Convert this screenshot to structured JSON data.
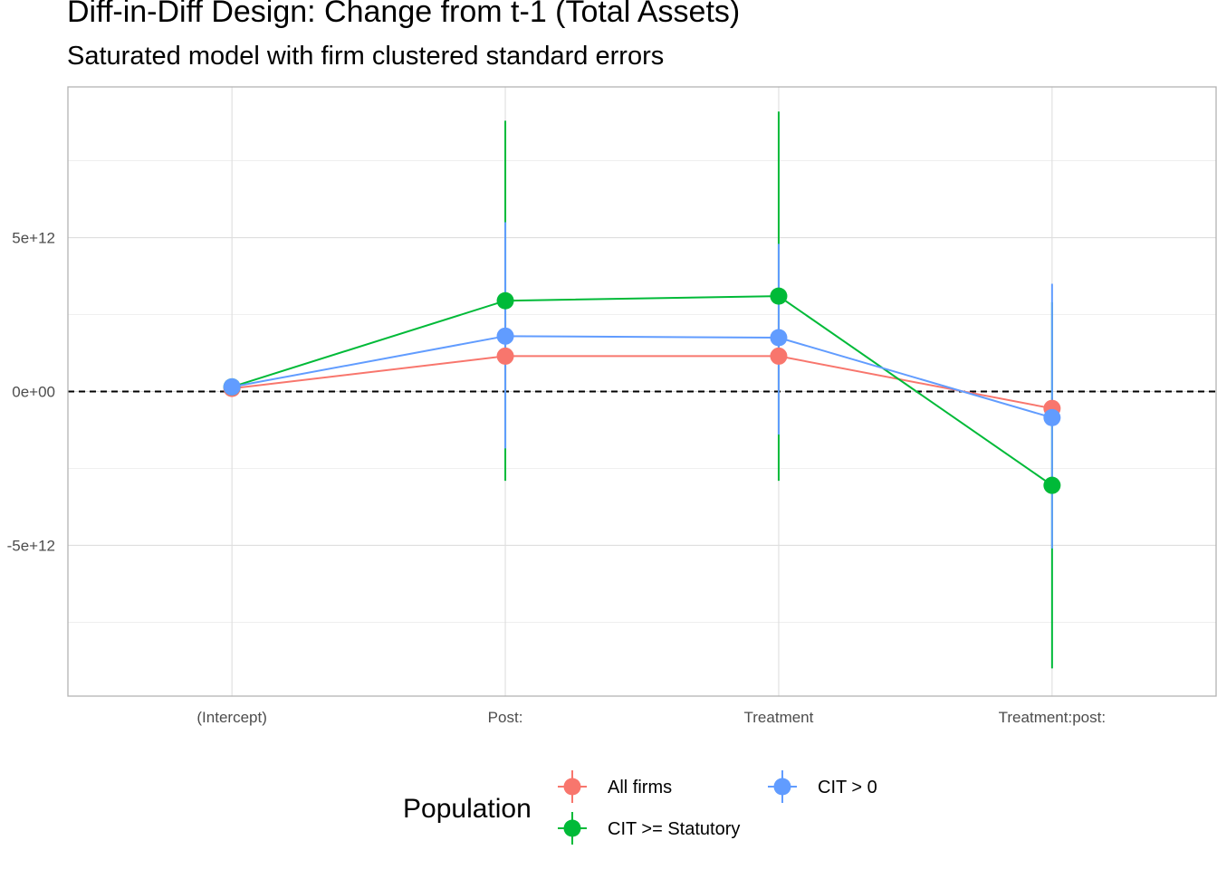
{
  "chart_data": {
    "type": "scatter",
    "title": "Diff-in-Diff Design: Change from t-1 (Total Assets)",
    "subtitle": "Saturated model with firm clustered standard errors",
    "xlabel": "",
    "ylabel": "",
    "categories": [
      "(Intercept)",
      "Post:",
      "Treatment",
      "Treatment:post:"
    ],
    "y_ticks": [
      -5000000000000.0,
      0,
      5000000000000.0
    ],
    "y_tick_labels": [
      "-5e+12",
      "0e+00",
      "5e+12"
    ],
    "ylim": [
      -9900000000000.0,
      9900000000000.0
    ],
    "reference_line": 0,
    "grid": true,
    "connected_points": true,
    "legend": {
      "title": "Population",
      "position": "bottom"
    },
    "series": [
      {
        "name": "All firms",
        "color": "#F8766D",
        "values": [
          100000000000.0,
          1150000000000.0,
          1150000000000.0,
          -550000000000.0
        ],
        "lower": [
          50000000000.0,
          0,
          0,
          -900000000000.0
        ],
        "upper": [
          150000000000.0,
          2300000000000.0,
          2300000000000.0,
          -200000000000.0
        ]
      },
      {
        "name": "CIT >= Statutory",
        "color": "#00BA38",
        "values": [
          150000000000.0,
          2950000000000.0,
          3100000000000.0,
          -3050000000000.0
        ],
        "lower": [
          50000000000.0,
          -2900000000000.0,
          -2900000000000.0,
          -9000000000000.0
        ],
        "upper": [
          250000000000.0,
          8800000000000.0,
          9100000000000.0,
          2900000000000.0
        ]
      },
      {
        "name": "CIT > 0",
        "color": "#619CFF",
        "values": [
          150000000000.0,
          1800000000000.0,
          1750000000000.0,
          -850000000000.0
        ],
        "lower": [
          50000000000.0,
          -1850000000000.0,
          -1400000000000.0,
          -5100000000000.0
        ],
        "upper": [
          250000000000.0,
          5500000000000.0,
          4800000000000.0,
          3500000000000.0
        ]
      }
    ]
  }
}
